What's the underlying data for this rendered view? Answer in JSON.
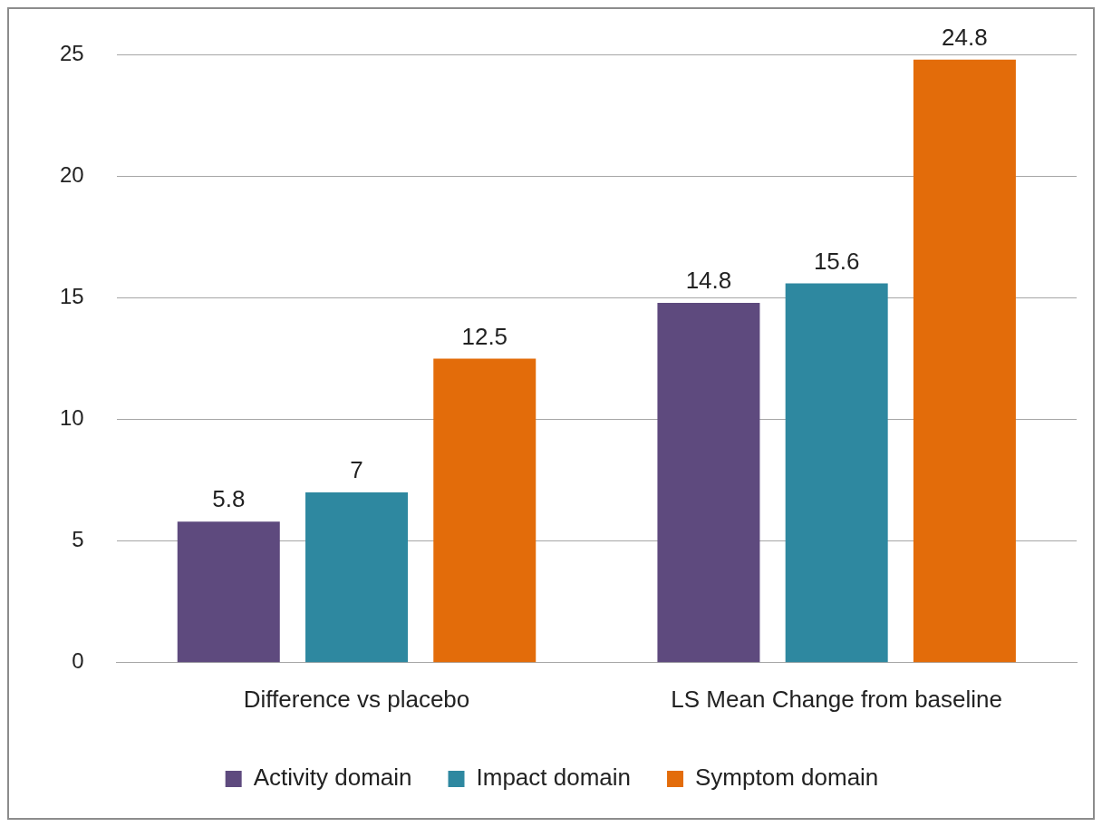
{
  "chart_data": {
    "type": "bar",
    "categories": [
      "Difference vs placebo",
      "LS Mean Change from baseline"
    ],
    "series": [
      {
        "name": "Activity domain",
        "color": "#5e4a7e",
        "values": [
          5.8,
          14.8
        ]
      },
      {
        "name": "Impact domain",
        "color": "#2e88a0",
        "values": [
          7,
          15.6
        ]
      },
      {
        "name": "Symptom domain",
        "color": "#e36c0a",
        "values": [
          12.5,
          24.8
        ]
      }
    ],
    "ylim": [
      0,
      25
    ],
    "yticks": [
      0,
      5,
      10,
      15,
      20,
      25
    ],
    "grid": "y",
    "legend": "bottom",
    "data_labels": true
  }
}
